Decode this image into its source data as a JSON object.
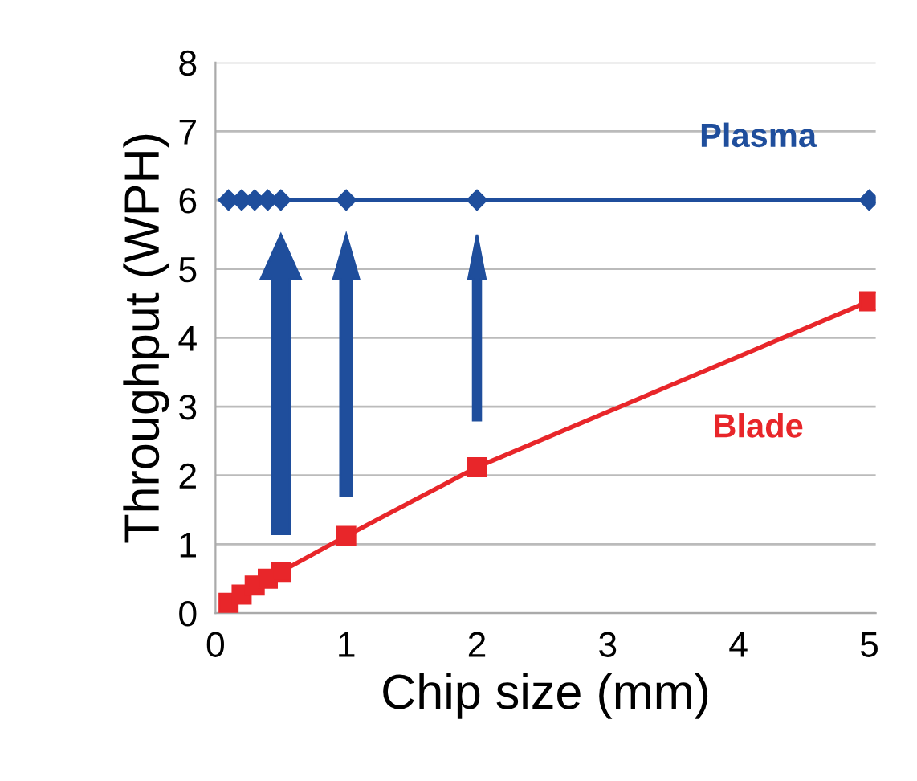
{
  "chart_data": {
    "type": "line",
    "xlabel": "Chip size (mm)",
    "ylabel": "Throughput (WPH)",
    "xlim": [
      0,
      5.05
    ],
    "xticks": [
      0,
      1,
      2,
      3,
      4,
      5
    ],
    "ylim": [
      0,
      8
    ],
    "yticks": [
      0,
      1,
      2,
      3,
      4,
      5,
      6,
      7,
      8
    ],
    "grid": "y",
    "legend": false,
    "series": [
      {
        "name": "Plasma",
        "color": "#1f4e9c",
        "marker": "diamond",
        "x": [
          0.1,
          0.2,
          0.3,
          0.4,
          0.5,
          1,
          2,
          5
        ],
        "values": [
          6,
          6,
          6,
          6,
          6,
          6,
          6,
          6
        ]
      },
      {
        "name": "Blade",
        "color": "#e8262a",
        "marker": "square",
        "x": [
          0.1,
          0.2,
          0.3,
          0.4,
          0.5,
          1,
          2,
          5
        ],
        "values": [
          0.15,
          0.27,
          0.4,
          0.5,
          0.6,
          1.12,
          2.12,
          4.53
        ]
      }
    ]
  }
}
